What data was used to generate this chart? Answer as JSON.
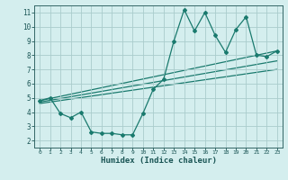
{
  "title": "",
  "xlabel": "Humidex (Indice chaleur)",
  "bg_color": "#d4eeee",
  "line_color": "#1a7a6e",
  "grid_color": "#aacccc",
  "xlim": [
    -0.5,
    23.5
  ],
  "ylim": [
    1.5,
    11.5
  ],
  "xticks": [
    0,
    1,
    2,
    3,
    4,
    5,
    6,
    7,
    8,
    9,
    10,
    11,
    12,
    13,
    14,
    15,
    16,
    17,
    18,
    19,
    20,
    21,
    22,
    23
  ],
  "yticks": [
    2,
    3,
    4,
    5,
    6,
    7,
    8,
    9,
    10,
    11
  ],
  "zigzag_x": [
    0,
    1,
    2,
    3,
    4,
    5,
    6,
    7,
    8,
    9,
    10,
    11,
    12,
    13,
    14,
    15,
    16,
    17,
    18,
    19,
    20,
    21,
    22,
    23
  ],
  "zigzag_y": [
    4.8,
    5.0,
    3.9,
    3.6,
    4.0,
    2.6,
    2.5,
    2.5,
    2.4,
    2.4,
    3.9,
    5.6,
    6.3,
    9.0,
    11.2,
    9.7,
    11.0,
    9.4,
    8.2,
    9.8,
    10.7,
    8.0,
    7.9,
    8.3
  ],
  "line1_x": [
    0,
    23
  ],
  "line1_y": [
    4.8,
    8.3
  ],
  "line2_x": [
    0,
    23
  ],
  "line2_y": [
    4.7,
    7.6
  ],
  "line3_x": [
    0,
    23
  ],
  "line3_y": [
    4.6,
    7.0
  ]
}
